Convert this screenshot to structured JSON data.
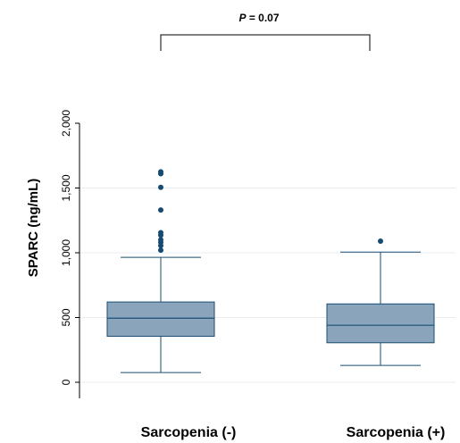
{
  "chart_data": {
    "type": "box",
    "ylabel": "SPARC (ng/mL)",
    "ylim": [
      0,
      2000
    ],
    "yticks": [
      0,
      500,
      1000,
      1500,
      2000
    ],
    "ytick_labels": [
      "0",
      "500",
      "1,000",
      "1,500",
      "2,000"
    ],
    "grid": "horizontal",
    "categories": [
      "Sarcopenia (-)",
      "Sarcopenia (+)"
    ],
    "boxes": [
      {
        "category": "Sarcopenia (-)",
        "whisker_low": 75,
        "q1": 355,
        "median": 495,
        "q3": 620,
        "whisker_high": 965,
        "outliers": [
          1020,
          1055,
          1080,
          1100,
          1135,
          1155,
          1330,
          1505,
          1610,
          1625
        ]
      },
      {
        "category": "Sarcopenia (+)",
        "whisker_low": 130,
        "q1": 305,
        "median": 440,
        "q3": 605,
        "whisker_high": 1005,
        "outliers": [
          1090
        ]
      }
    ],
    "annotation": {
      "label_italic": "P",
      "label_rest": " = 0.07"
    },
    "colors": {
      "box_fill": "#8aa5bb",
      "box_stroke": "#1a4e72",
      "outlier": "#154a72",
      "grid": "#e8ecf0"
    }
  }
}
